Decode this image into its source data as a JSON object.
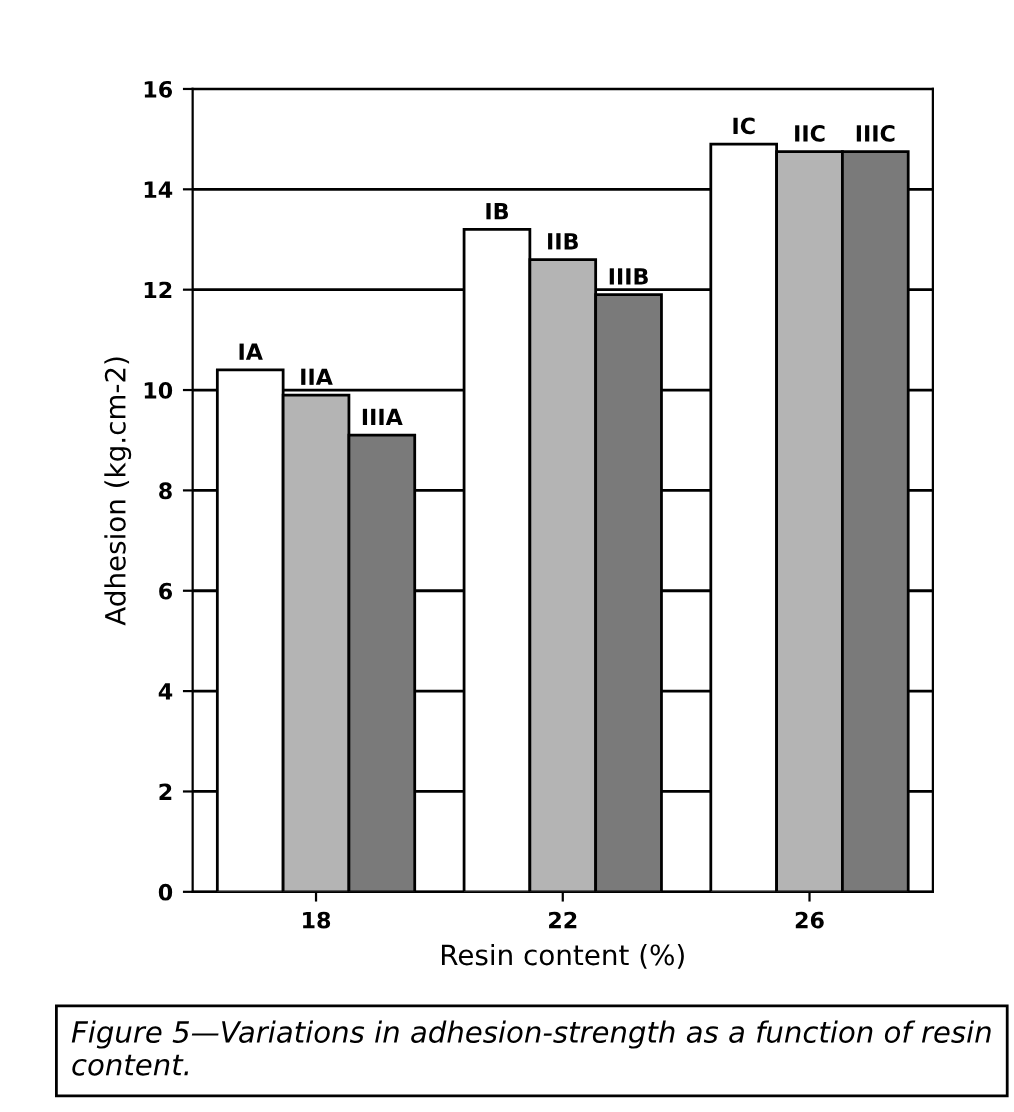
{
  "chart_data": {
    "type": "bar",
    "xlabel": "Resin content (%)",
    "ylabel": "Adhesion (kg.cm-2)",
    "categories": [
      "18",
      "22",
      "26"
    ],
    "series": [
      {
        "color": "#ffffff",
        "values": [
          10.4,
          13.2,
          14.9
        ],
        "value_labels": [
          "IA",
          "IB",
          "IC"
        ]
      },
      {
        "color": "#b4b4b4",
        "values": [
          9.9,
          12.6,
          14.75
        ],
        "value_labels": [
          "IIA",
          "IIB",
          "IIC"
        ]
      },
      {
        "color": "#7a7a7a",
        "values": [
          9.1,
          11.9,
          14.75
        ],
        "value_labels": [
          "IIIA",
          "IIIB",
          "IIIC"
        ]
      }
    ],
    "ylim": [
      0,
      16
    ],
    "yticks": [
      0,
      2,
      4,
      6,
      8,
      10,
      12,
      14,
      16
    ],
    "grid": "y",
    "legend": false,
    "annotations": [
      "Figure 5—Variations in adhesion-strength as a function of resin content."
    ]
  }
}
